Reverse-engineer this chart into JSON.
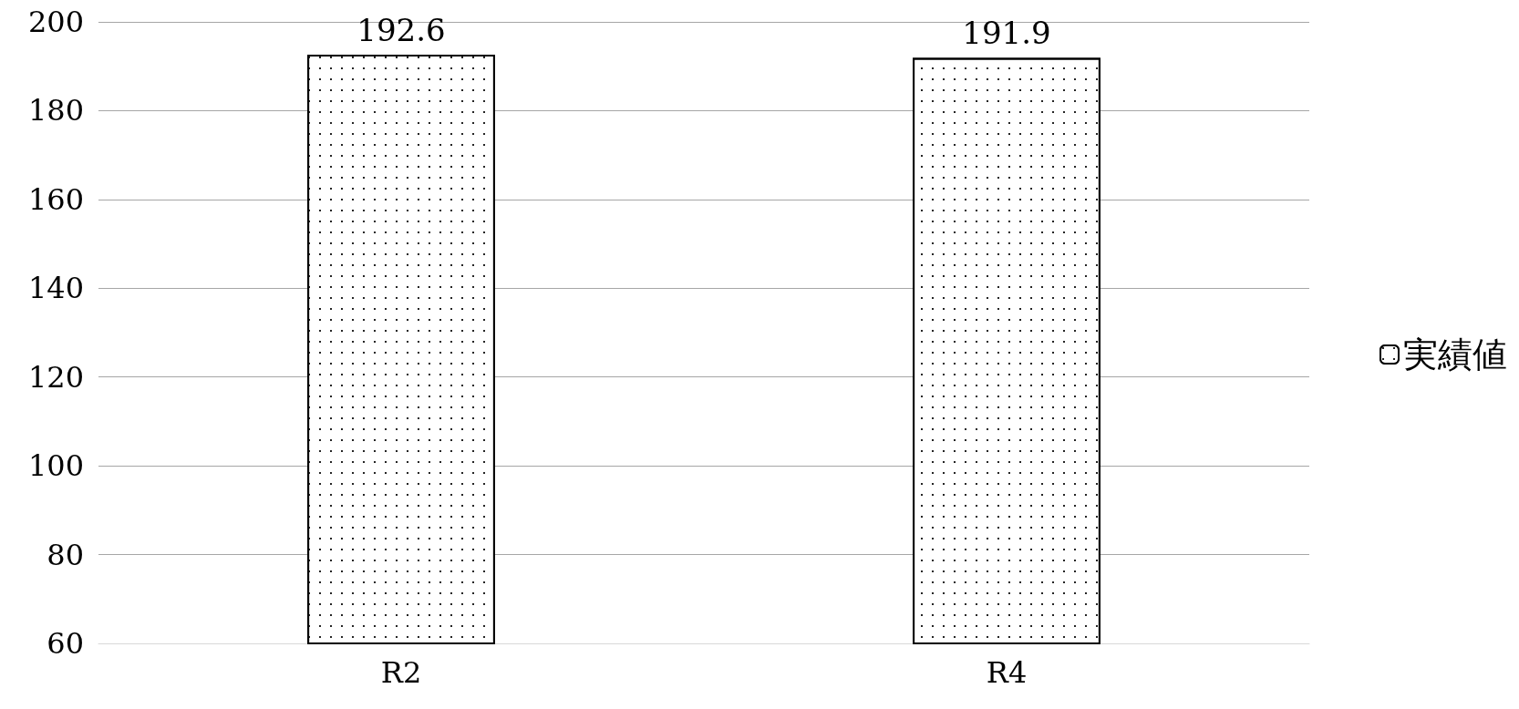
{
  "chart_data": {
    "type": "bar",
    "categories": [
      "R2",
      "R4"
    ],
    "series": [
      {
        "name": "実績値",
        "color": "#ffffff",
        "values": [
          192.6,
          191.9
        ]
      }
    ],
    "ylim": [
      60,
      200
    ],
    "yticks": [
      60,
      80,
      100,
      120,
      140,
      160,
      180,
      200
    ],
    "grid": "y",
    "legend": "right",
    "data_labels": true
  }
}
